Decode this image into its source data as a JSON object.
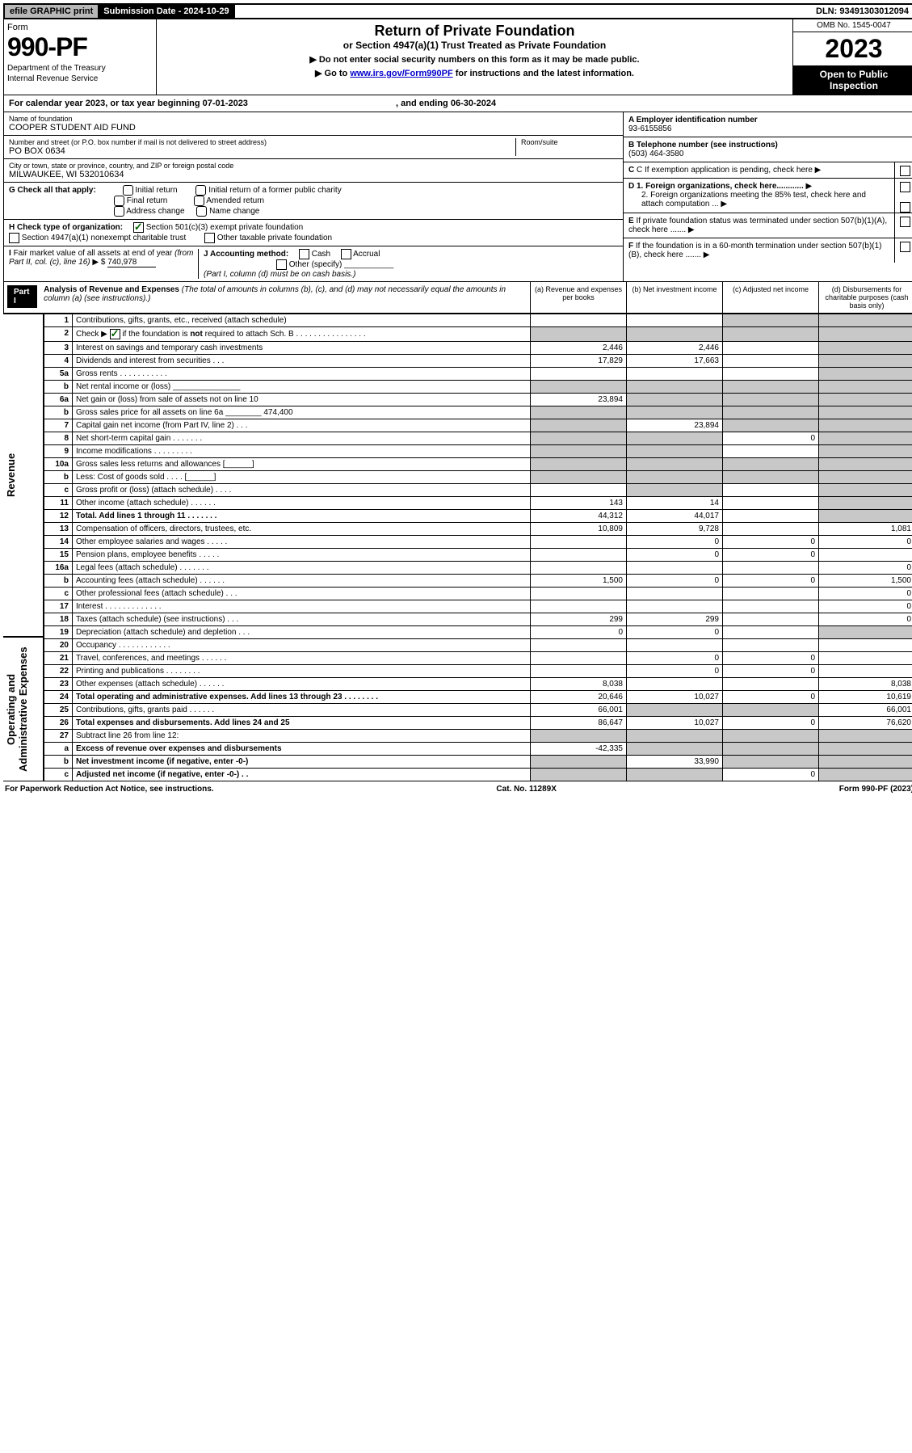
{
  "top": {
    "efile": "efile GRAPHIC print",
    "sub_label": "Submission Date - 2024-10-29",
    "dln": "DLN: 93491303012094"
  },
  "header": {
    "form_label": "Form",
    "form_num": "990-PF",
    "dept": "Department of the Treasury",
    "irs": "Internal Revenue Service",
    "title": "Return of Private Foundation",
    "subtitle": "or Section 4947(a)(1) Trust Treated as Private Foundation",
    "note1": "▶ Do not enter social security numbers on this form as it may be made public.",
    "note2_pre": "▶ Go to ",
    "note2_link": "www.irs.gov/Form990PF",
    "note2_post": " for instructions and the latest information.",
    "omb": "OMB No. 1545-0047",
    "year": "2023",
    "open": "Open to Public Inspection"
  },
  "calyear": {
    "pre": "For calendar year 2023, or tax year beginning ",
    "begin": "07-01-2023",
    "mid": " , and ending ",
    "end": "06-30-2024"
  },
  "info": {
    "name_label": "Name of foundation",
    "name": "COOPER STUDENT AID FUND",
    "addr_label": "Number and street (or P.O. box number if mail is not delivered to street address)",
    "addr": "PO BOX 0634",
    "room_label": "Room/suite",
    "city_label": "City or town, state or province, country, and ZIP or foreign postal code",
    "city": "MILWAUKEE, WI  532010634",
    "a_label": "A Employer identification number",
    "a_val": "93-6155856",
    "b_label": "B Telephone number (see instructions)",
    "b_val": "(503) 464-3580",
    "c_label": "C If exemption application is pending, check here",
    "d1": "D 1. Foreign organizations, check here............",
    "d2": "2. Foreign organizations meeting the 85% test, check here and attach computation ...",
    "e": "E  If private foundation status was terminated under section 507(b)(1)(A), check here .......",
    "f": "F  If the foundation is in a 60-month termination under section 507(b)(1)(B), check here .......",
    "g_label": "G Check all that apply:",
    "g_opts": [
      "Initial return",
      "Initial return of a former public charity",
      "Final return",
      "Amended return",
      "Address change",
      "Name change"
    ],
    "h_label": "H Check type of organization:",
    "h_opts": [
      "Section 501(c)(3) exempt private foundation",
      "Section 4947(a)(1) nonexempt charitable trust",
      "Other taxable private foundation"
    ],
    "i_label": "I Fair market value of all assets at end of year (from Part II, col. (c), line 16) ▶ $",
    "i_val": "740,978",
    "j_label": "J Accounting method:",
    "j_opts": [
      "Cash",
      "Accrual",
      "Other (specify)"
    ],
    "j_note": "(Part I, column (d) must be on cash basis.)"
  },
  "part1": {
    "header": "Part I",
    "title": "Analysis of Revenue and Expenses",
    "title_note": " (The total of amounts in columns (b), (c), and (d) may not necessarily equal the amounts in column (a) (see instructions).)",
    "col_a": "(a)   Revenue and expenses per books",
    "col_b": "(b)   Net investment income",
    "col_c": "(c)   Adjusted net income",
    "col_d": "(d)   Disbursements for charitable purposes (cash basis only)"
  },
  "side_labels": {
    "revenue": "Revenue",
    "expenses": "Operating and Administrative Expenses"
  },
  "rows": [
    {
      "n": "1",
      "d": "Contributions, gifts, grants, etc., received (attach schedule)",
      "a": "",
      "b": "",
      "c": "shade",
      "dd": "shade"
    },
    {
      "n": "2",
      "d": "Check ▶ ☑ if the foundation is not required to attach Sch. B   .  .  .  .  .  .  .  .  .  .  .  .  .  .  .  .",
      "a": "shade",
      "b": "shade",
      "c": "shade",
      "dd": "shade",
      "check": true
    },
    {
      "n": "3",
      "d": "Interest on savings and temporary cash investments",
      "a": "2,446",
      "b": "2,446",
      "c": "",
      "dd": "shade"
    },
    {
      "n": "4",
      "d": "Dividends and interest from securities   .   .   .",
      "a": "17,829",
      "b": "17,663",
      "c": "",
      "dd": "shade"
    },
    {
      "n": "5a",
      "d": "Gross rents   .   .   .   .   .   .   .   .   .   .   .",
      "a": "",
      "b": "",
      "c": "",
      "dd": "shade"
    },
    {
      "n": "b",
      "d": "Net rental income or (loss)  _______________",
      "a": "shade",
      "b": "shade",
      "c": "shade",
      "dd": "shade"
    },
    {
      "n": "6a",
      "d": "Net gain or (loss) from sale of assets not on line 10",
      "a": "23,894",
      "b": "shade",
      "c": "shade",
      "dd": "shade"
    },
    {
      "n": "b",
      "d": "Gross sales price for all assets on line 6a ________ 474,400",
      "a": "shade",
      "b": "shade",
      "c": "shade",
      "dd": "shade"
    },
    {
      "n": "7",
      "d": "Capital gain net income (from Part IV, line 2)   .   .   .",
      "a": "shade",
      "b": "23,894",
      "c": "shade",
      "dd": "shade"
    },
    {
      "n": "8",
      "d": "Net short-term capital gain   .   .   .   .   .   .   .",
      "a": "shade",
      "b": "shade",
      "c": "0",
      "dd": "shade"
    },
    {
      "n": "9",
      "d": "Income modifications  .   .   .   .   .   .   .   .   .",
      "a": "shade",
      "b": "shade",
      "c": "",
      "dd": "shade"
    },
    {
      "n": "10a",
      "d": "Gross sales less returns and allowances  [______]",
      "a": "shade",
      "b": "shade",
      "c": "shade",
      "dd": "shade"
    },
    {
      "n": "b",
      "d": "Less: Cost of goods sold   .   .   .   .   [______]",
      "a": "shade",
      "b": "shade",
      "c": "shade",
      "dd": "shade"
    },
    {
      "n": "c",
      "d": "Gross profit or (loss) (attach schedule)   .   .   .   .",
      "a": "",
      "b": "shade",
      "c": "",
      "dd": "shade"
    },
    {
      "n": "11",
      "d": "Other income (attach schedule)   .   .   .   .   .   .",
      "a": "143",
      "b": "14",
      "c": "",
      "dd": "shade"
    },
    {
      "n": "12",
      "d": "Total. Add lines 1 through 11   .   .   .   .   .   .   .",
      "a": "44,312",
      "b": "44,017",
      "c": "",
      "dd": "shade",
      "bold": true
    },
    {
      "n": "13",
      "d": "Compensation of officers, directors, trustees, etc.",
      "a": "10,809",
      "b": "9,728",
      "c": "",
      "dd": "1,081"
    },
    {
      "n": "14",
      "d": "Other employee salaries and wages   .   .   .   .   .",
      "a": "",
      "b": "0",
      "c": "0",
      "dd": "0"
    },
    {
      "n": "15",
      "d": "Pension plans, employee benefits   .   .   .   .   .",
      "a": "",
      "b": "0",
      "c": "0",
      "dd": ""
    },
    {
      "n": "16a",
      "d": "Legal fees (attach schedule)  .   .   .   .   .   .   .",
      "a": "",
      "b": "",
      "c": "",
      "dd": "0"
    },
    {
      "n": "b",
      "d": "Accounting fees (attach schedule)  .   .   .   .   .   .",
      "a": "1,500",
      "b": "0",
      "c": "0",
      "dd": "1,500"
    },
    {
      "n": "c",
      "d": "Other professional fees (attach schedule)   .   .   .",
      "a": "",
      "b": "",
      "c": "",
      "dd": "0"
    },
    {
      "n": "17",
      "d": "Interest  .   .   .   .   .   .   .   .   .   .   .   .   .",
      "a": "",
      "b": "",
      "c": "",
      "dd": "0"
    },
    {
      "n": "18",
      "d": "Taxes (attach schedule) (see instructions)   .   .   .",
      "a": "299",
      "b": "299",
      "c": "",
      "dd": "0"
    },
    {
      "n": "19",
      "d": "Depreciation (attach schedule) and depletion   .   .   .",
      "a": "0",
      "b": "0",
      "c": "",
      "dd": "shade"
    },
    {
      "n": "20",
      "d": "Occupancy  .   .   .   .   .   .   .   .   .   .   .   .",
      "a": "",
      "b": "",
      "c": "",
      "dd": ""
    },
    {
      "n": "21",
      "d": "Travel, conferences, and meetings  .   .   .   .   .   .",
      "a": "",
      "b": "0",
      "c": "0",
      "dd": ""
    },
    {
      "n": "22",
      "d": "Printing and publications  .   .   .   .   .   .   .   .",
      "a": "",
      "b": "0",
      "c": "0",
      "dd": ""
    },
    {
      "n": "23",
      "d": "Other expenses (attach schedule)  .   .   .   .   .   .",
      "a": "8,038",
      "b": "",
      "c": "",
      "dd": "8,038"
    },
    {
      "n": "24",
      "d": "Total operating and administrative expenses. Add lines 13 through 23   .   .   .   .   .   .   .   .",
      "a": "20,646",
      "b": "10,027",
      "c": "0",
      "dd": "10,619",
      "bold": true
    },
    {
      "n": "25",
      "d": "Contributions, gifts, grants paid   .   .   .   .   .   .",
      "a": "66,001",
      "b": "shade",
      "c": "shade",
      "dd": "66,001"
    },
    {
      "n": "26",
      "d": "Total expenses and disbursements. Add lines 24 and 25",
      "a": "86,647",
      "b": "10,027",
      "c": "0",
      "dd": "76,620",
      "bold": true
    },
    {
      "n": "27",
      "d": "Subtract line 26 from line 12:",
      "a": "shade",
      "b": "shade",
      "c": "shade",
      "dd": "shade"
    },
    {
      "n": "a",
      "d": "Excess of revenue over expenses and disbursements",
      "a": "-42,335",
      "b": "shade",
      "c": "shade",
      "dd": "shade",
      "bold": true
    },
    {
      "n": "b",
      "d": "Net investment income (if negative, enter -0-)",
      "a": "shade",
      "b": "33,990",
      "c": "shade",
      "dd": "shade",
      "bold": true
    },
    {
      "n": "c",
      "d": "Adjusted net income (if negative, enter -0-)   .   .",
      "a": "shade",
      "b": "shade",
      "c": "0",
      "dd": "shade",
      "bold": true
    }
  ],
  "footer": {
    "left": "For Paperwork Reduction Act Notice, see instructions.",
    "mid": "Cat. No. 11289X",
    "right": "Form 990-PF (2023)"
  },
  "colors": {
    "shade": "#c8c8c8",
    "link": "#0000cc",
    "check": "#006400"
  }
}
